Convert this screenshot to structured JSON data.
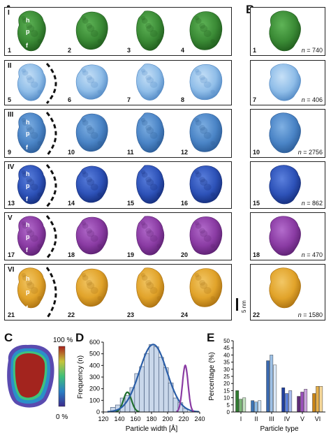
{
  "panels": {
    "A": "A",
    "B": "B",
    "C": "C",
    "D": "D",
    "E": "E"
  },
  "rows": [
    {
      "roman": "I",
      "color": "#3a8a35",
      "dark": "#1f5a1c",
      "light": "#5fb457",
      "items": [
        "1",
        "2",
        "3",
        "4"
      ],
      "b_index": "1",
      "b_n": "740",
      "regions": true,
      "dashed": false
    },
    {
      "roman": "II",
      "color": "#8fbde8",
      "dark": "#4f86c2",
      "light": "#c6e0f7",
      "items": [
        "5",
        "6",
        "7",
        "8"
      ],
      "b_index": "7",
      "b_n": "406",
      "regions": false,
      "dashed": true
    },
    {
      "roman": "III",
      "color": "#4a84c6",
      "dark": "#2a5a95",
      "light": "#7fb0e3",
      "items": [
        "9",
        "10",
        "11",
        "12"
      ],
      "b_index": "10",
      "b_n": "2756",
      "regions": true,
      "dashed": true
    },
    {
      "roman": "IV",
      "color": "#2d52b8",
      "dark": "#142c78",
      "light": "#5b80dd",
      "items": [
        "13",
        "14",
        "15",
        "16"
      ],
      "b_index": "15",
      "b_n": "862",
      "regions": true,
      "dashed": true
    },
    {
      "roman": "V",
      "color": "#8a3ba3",
      "dark": "#5a1f6f",
      "light": "#b36ccc",
      "items": [
        "17",
        "18",
        "19",
        "20"
      ],
      "b_index": "18",
      "b_n": "470",
      "regions": true,
      "dashed": true
    },
    {
      "roman": "VI",
      "color": "#e1a32a",
      "dark": "#a86f10",
      "light": "#f2c766",
      "items": [
        "21",
        "22",
        "23",
        "24"
      ],
      "b_index": "22",
      "b_n": "1580",
      "regions": true,
      "dashed": true
    }
  ],
  "region_labels": {
    "h": "h",
    "p": "p",
    "f": "f"
  },
  "n_prefix": "n",
  "scalebar_label": "5 nm",
  "panel_c": {
    "max_label": "100 %",
    "min_label": "0 %"
  },
  "chart_data": [
    {
      "type": "bar",
      "panel": "D",
      "title": "",
      "xlabel": "Particle width [Å]",
      "ylabel": "Frequency (n)",
      "xlim": [
        120,
        240
      ],
      "ylim": [
        0,
        600
      ],
      "xticks": [
        "120",
        "140",
        "160",
        "180",
        "200",
        "220",
        "240"
      ],
      "yticks": [
        "0",
        "100",
        "200",
        "300",
        "400",
        "500",
        "600"
      ],
      "bin_width": 6,
      "bins_x": [
        132,
        138,
        144,
        150,
        156,
        162,
        168,
        174,
        180,
        186,
        192,
        198,
        204,
        210,
        216,
        222
      ],
      "values": [
        40,
        60,
        120,
        140,
        210,
        330,
        390,
        500,
        580,
        560,
        470,
        380,
        250,
        120,
        80,
        30
      ],
      "fits": [
        {
          "color": "#1f6e2e",
          "mu": 150,
          "sigma": 5,
          "amp": 170
        },
        {
          "color": "#2b5ea7",
          "mu": 182,
          "sigma": 17,
          "amp": 580
        },
        {
          "color": "#8a3ba3",
          "mu": 222,
          "sigma": 3.5,
          "amp": 400
        }
      ],
      "bar_color": "#c9d7ea"
    },
    {
      "type": "bar",
      "panel": "E",
      "title": "",
      "xlabel": "Particle type",
      "ylabel": "Percentage (%)",
      "ylim": [
        0,
        50
      ],
      "yticks": [
        "0",
        "5",
        "10",
        "15",
        "20",
        "25",
        "30",
        "35",
        "40",
        "45",
        "50"
      ],
      "categories": [
        "I",
        "II",
        "III",
        "IV",
        "V",
        "VI"
      ],
      "series": [
        {
          "values": [
            15,
            8,
            36,
            17,
            11,
            13
          ]
        },
        {
          "values": [
            9,
            7,
            40,
            13,
            14,
            18
          ]
        },
        {
          "values": [
            10,
            8,
            33,
            15,
            16,
            18
          ]
        }
      ],
      "category_colors": [
        [
          "#2f7a30",
          "#7db579",
          "#c2e0bf"
        ],
        [
          "#3d74b5",
          "#8fbde8",
          "#cfe3f6"
        ],
        [
          "#3b6ab0",
          "#9cc0e6",
          "#dbe9f8"
        ],
        [
          "#1f3f9e",
          "#5b80dd",
          "#a9bdf0"
        ],
        [
          "#5f2a78",
          "#9a4fbb",
          "#caa1de"
        ],
        [
          "#c98416",
          "#e7b04a",
          "#f6d89a"
        ]
      ]
    }
  ]
}
